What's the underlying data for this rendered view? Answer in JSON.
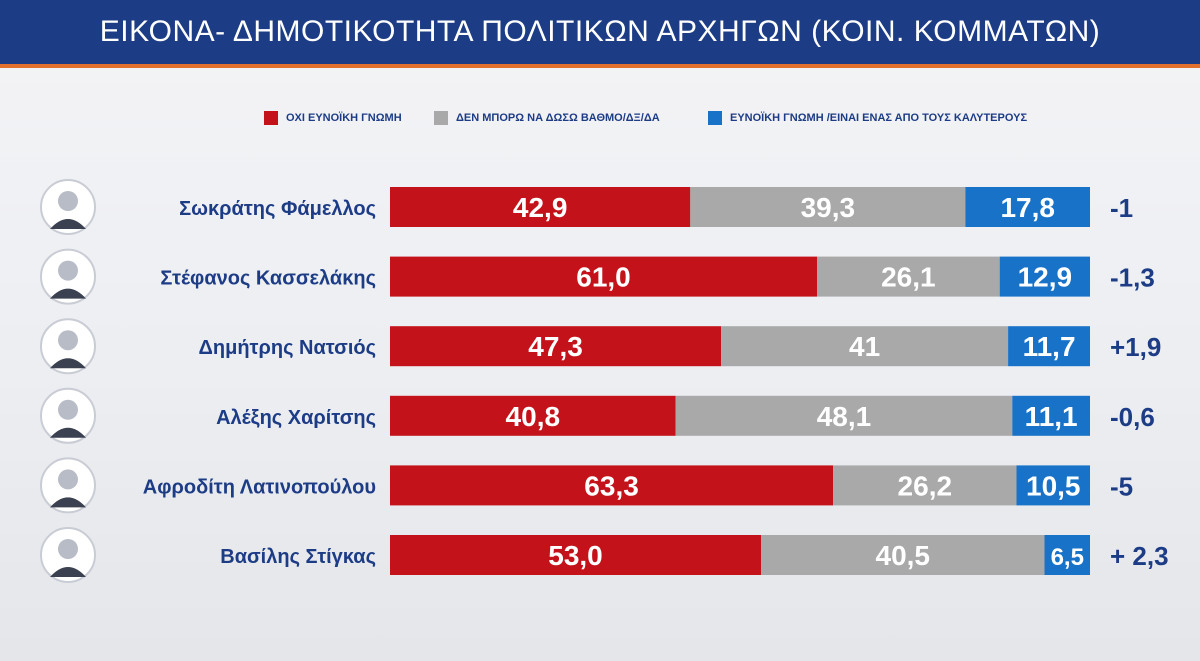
{
  "header": {
    "title": "ΕΙΚΟΝΑ- ΔΗΜΟΤΙΚΟΤΗΤΑ ΠΟΛΙΤΙΚΩΝ ΑΡΧΗΓΩΝ (ΚΟΙΝ. ΚΟΜΜΑΤΩΝ)"
  },
  "colors": {
    "unfavorable": "#c4121a",
    "neutral": "#a9a9a9",
    "favorable": "#1872c8",
    "header_bg": "#1d3c86",
    "header_accent": "#e0702b",
    "text": "#1d3c86"
  },
  "chart_data": {
    "type": "bar",
    "orientation": "horizontal",
    "stacked": true,
    "categories": [
      "Σωκράτης Φάμελλος",
      "Στέφανος Κασσελάκης",
      "Δημήτρης Νατσιός",
      "Αλέξης Χαρίτσης",
      "Αφροδίτη Λατινοπούλου",
      "Βασίλης Στίγκας"
    ],
    "series": [
      {
        "name": "ΟΧΙ ΕΥΝΟΪΚΗ ΓΝΩΜΗ",
        "values": [
          42.9,
          61.0,
          47.3,
          40.8,
          63.3,
          53.0
        ],
        "labels": [
          "42,9",
          "61,0",
          "47,3",
          "40,8",
          "63,3",
          "53,0"
        ]
      },
      {
        "name": "ΔΕΝ ΜΠΟΡΩ ΝΑ ΔΩΣΩ ΒΑΘΜΟ/ΔΞ/ΔΑ",
        "values": [
          39.3,
          26.1,
          41,
          48.1,
          26.2,
          40.5
        ],
        "labels": [
          "39,3",
          "26,1",
          "41",
          "48,1",
          "26,2",
          "40,5"
        ]
      },
      {
        "name": "ΕΥΝΟΪΚΗ ΓΝΩΜΗ /ΕΙΝΑΙ ΕΝΑΣ ΑΠΟ ΤΟΥΣ ΚΑΛΥΤΕΡΟΥΣ",
        "values": [
          17.8,
          12.9,
          11.7,
          11.1,
          10.5,
          6.5
        ],
        "labels": [
          "17,8",
          "12,9",
          "11,7",
          "11,1",
          "10,5",
          "6,5"
        ]
      }
    ],
    "changes": [
      "-1",
      "-1,3",
      "+1,9",
      "-0,6",
      "-5",
      "+ 2,3"
    ],
    "xlim": [
      0,
      100
    ],
    "grid": false,
    "legend_position": "top"
  }
}
